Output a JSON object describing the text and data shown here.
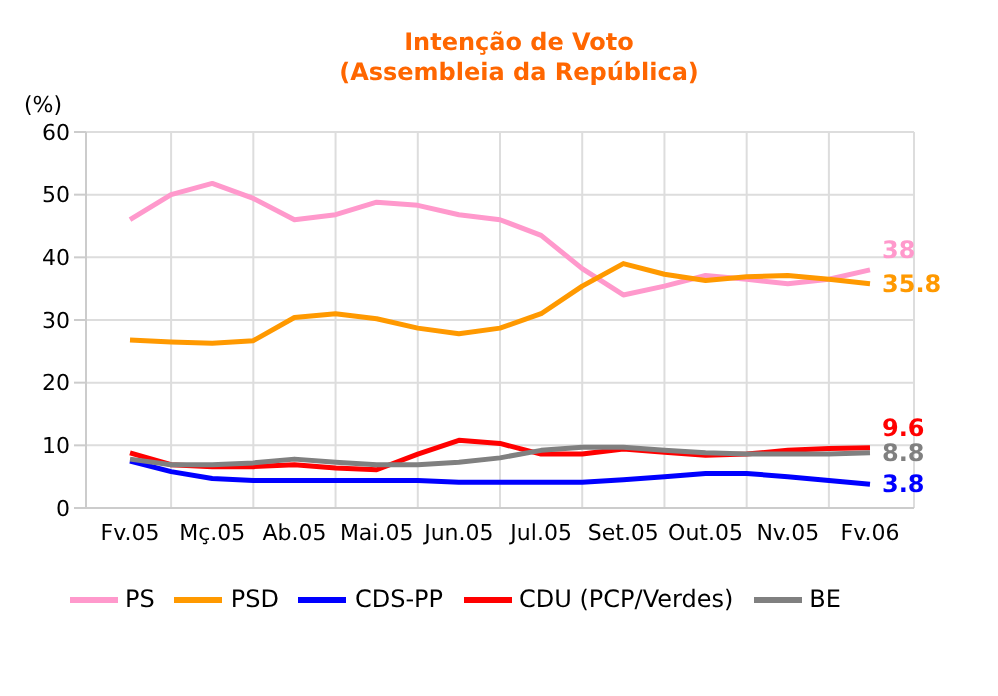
{
  "chart_data": {
    "type": "line",
    "title": "Intenção de Voto",
    "subtitle": "(Assembleia da República)",
    "ylabel": "(%)",
    "categories": [
      "Fv.05",
      null,
      "Mç.05",
      null,
      "Ab.05",
      null,
      "Mai.05",
      null,
      "Jun.05",
      null,
      "Jul.05",
      null,
      "Set.05",
      null,
      "Out.05",
      null,
      "Nv.05",
      null,
      "Fv.06"
    ],
    "series": [
      {
        "name": "PS",
        "color": "#ff99cc",
        "values": [
          46,
          50,
          51.8,
          49.4,
          46,
          46.8,
          48.8,
          48.3,
          46.8,
          46,
          43.5,
          38.2,
          34,
          35.4,
          37.1,
          36.5,
          35.8,
          36.5,
          38
        ],
        "value_labels": [
          null,
          null,
          null,
          null,
          null,
          null,
          null,
          null,
          null,
          null,
          null,
          null,
          null,
          null,
          null,
          null,
          null,
          null,
          "38"
        ]
      },
      {
        "name": "PSD",
        "color": "#ff9900",
        "values": [
          26.8,
          26.5,
          26.3,
          26.7,
          30.4,
          31,
          30.2,
          28.7,
          27.8,
          28.7,
          31,
          35.4,
          39,
          37.3,
          36.3,
          36.9,
          37.1,
          36.5,
          35.8
        ],
        "value_labels": [
          null,
          null,
          null,
          null,
          null,
          null,
          null,
          null,
          null,
          null,
          null,
          null,
          null,
          null,
          null,
          null,
          null,
          null,
          "35.8"
        ]
      },
      {
        "name": "CDS-PP",
        "color": "#0000ff",
        "values": [
          7.5,
          5.8,
          4.7,
          4.4,
          4.4,
          4.4,
          4.4,
          4.4,
          4.1,
          4.1,
          4.1,
          4.1,
          4.5,
          5,
          5.5,
          5.5,
          5,
          4.4,
          3.8
        ],
        "value_labels": [
          null,
          null,
          null,
          null,
          null,
          null,
          null,
          null,
          null,
          null,
          null,
          null,
          null,
          null,
          null,
          null,
          null,
          null,
          "3.8"
        ]
      },
      {
        "name": "CDU (PCP/Verdes)",
        "color": "#ff0000",
        "values": [
          8.8,
          6.9,
          6.6,
          6.6,
          6.9,
          6.4,
          6.1,
          8.6,
          10.8,
          10.3,
          8.6,
          8.6,
          9.4,
          8.9,
          8.4,
          8.6,
          9.2,
          9.5,
          9.6
        ],
        "value_labels": [
          null,
          null,
          null,
          null,
          null,
          null,
          null,
          null,
          null,
          null,
          null,
          null,
          null,
          null,
          null,
          null,
          null,
          null,
          "9.6"
        ]
      },
      {
        "name": "BE",
        "color": "#808080",
        "values": [
          7.8,
          6.9,
          6.9,
          7.2,
          7.8,
          7.3,
          6.9,
          6.9,
          7.3,
          8,
          9.2,
          9.7,
          9.7,
          9.2,
          8.8,
          8.6,
          8.6,
          8.6,
          8.8
        ],
        "value_labels": [
          null,
          null,
          null,
          null,
          null,
          null,
          null,
          null,
          null,
          null,
          null,
          null,
          null,
          null,
          null,
          null,
          null,
          null,
          "8.8"
        ]
      }
    ],
    "ylim": [
      0,
      60
    ],
    "yticks": [
      0,
      10,
      20,
      30,
      40,
      50,
      60
    ],
    "grid": true,
    "legend": "bottom",
    "marker": "none",
    "line_style": "solid"
  }
}
